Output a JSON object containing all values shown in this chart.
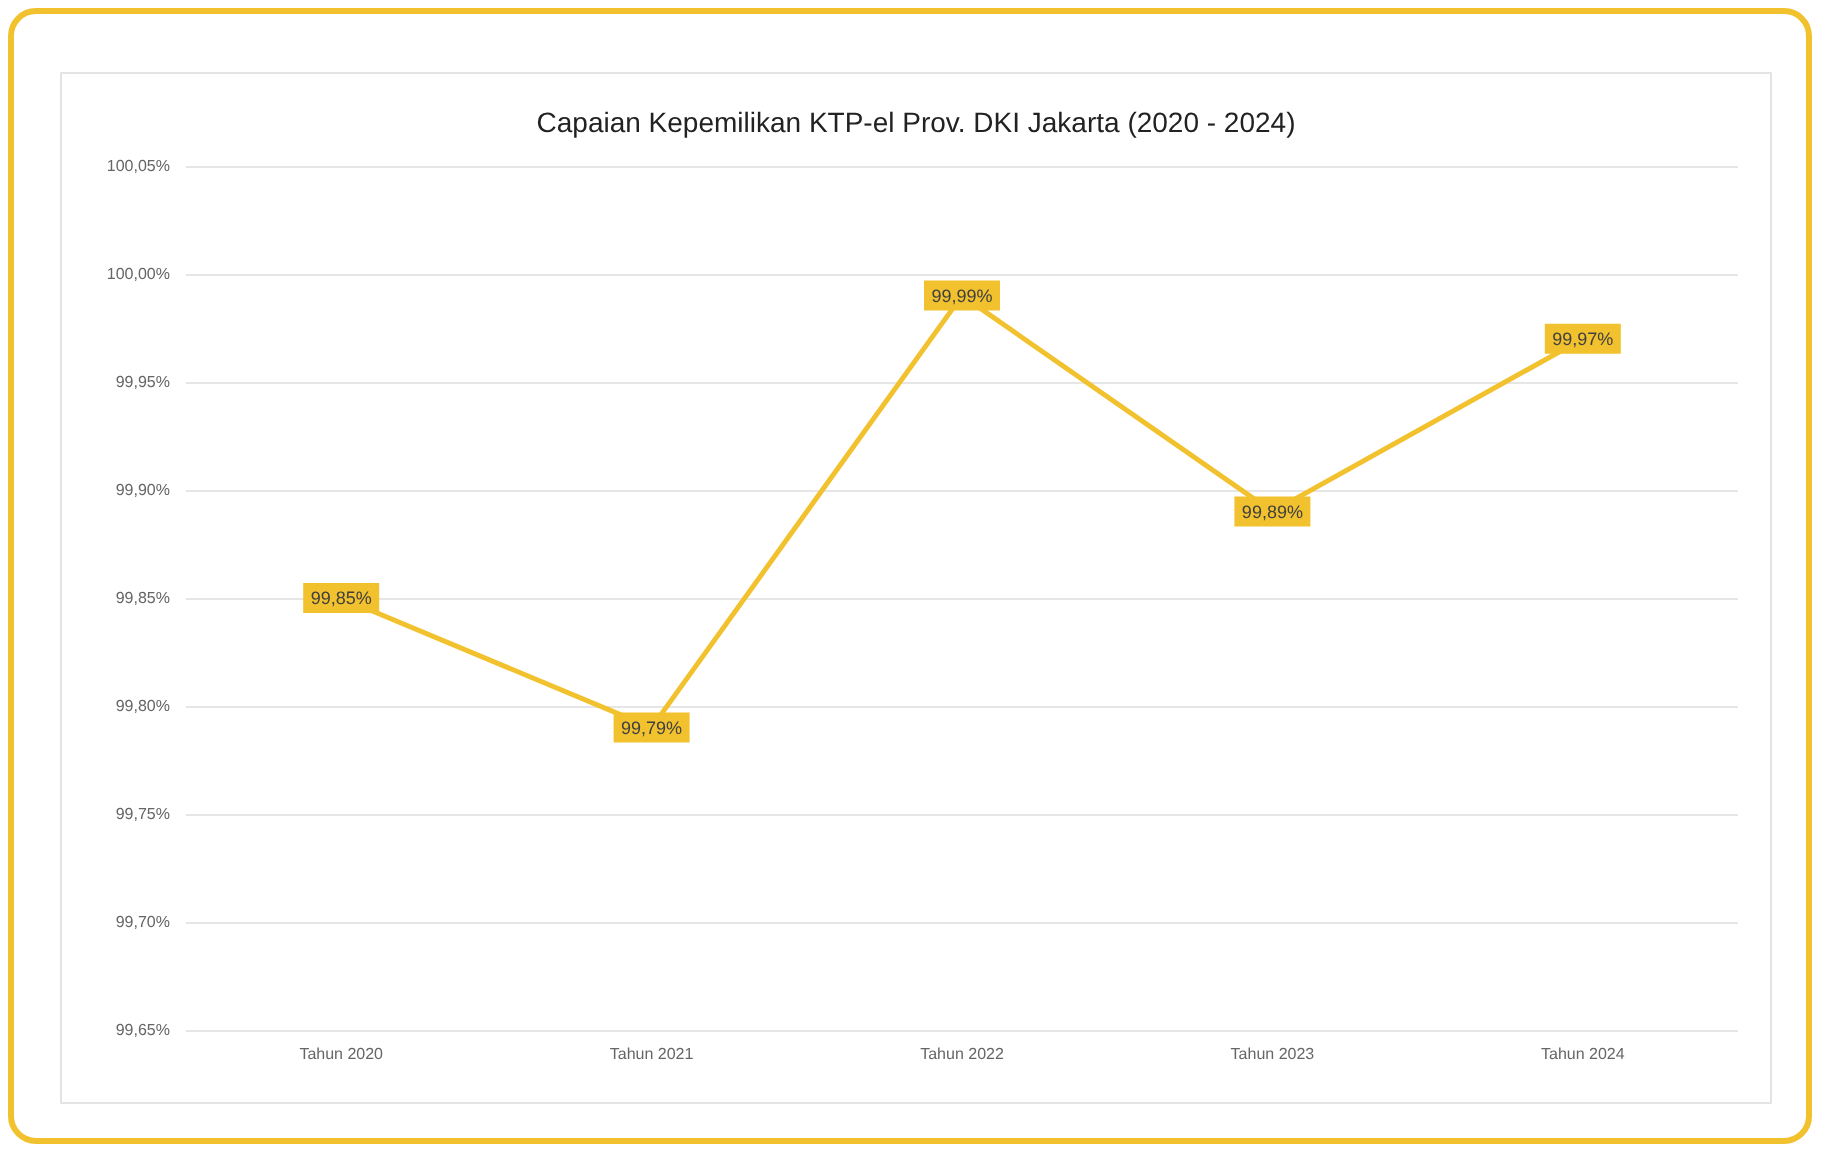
{
  "chart_data": {
    "type": "line",
    "title": "Capaian Kepemilikan KTP-el Prov. DKI Jakarta (2020 - 2024)",
    "categories": [
      "Tahun 2020",
      "Tahun 2021",
      "Tahun 2022",
      "Tahun 2023",
      "Tahun 2024"
    ],
    "series": [
      {
        "color": "#f2c12e",
        "values": [
          99.85,
          99.79,
          99.99,
          99.89,
          99.97
        ],
        "value_labels": [
          "99,85%",
          "99,79%",
          "99,99%",
          "99,89%",
          "99,97%"
        ]
      }
    ],
    "ylim": [
      99.65,
      100.05
    ],
    "yticks": [
      {
        "value": 99.65,
        "label": "99,65%"
      },
      {
        "value": 99.7,
        "label": "99,70%"
      },
      {
        "value": 99.75,
        "label": "99,75%"
      },
      {
        "value": 99.8,
        "label": "99,80%"
      },
      {
        "value": 99.85,
        "label": "99,85%"
      },
      {
        "value": 99.9,
        "label": "99,90%"
      },
      {
        "value": 99.95,
        "label": "99,95%"
      },
      {
        "value": 100,
        "label": "100,00%"
      },
      {
        "value": 100.05,
        "label": "100,05%"
      }
    ],
    "grid": "y",
    "marker": "square",
    "line_style": "solid"
  }
}
